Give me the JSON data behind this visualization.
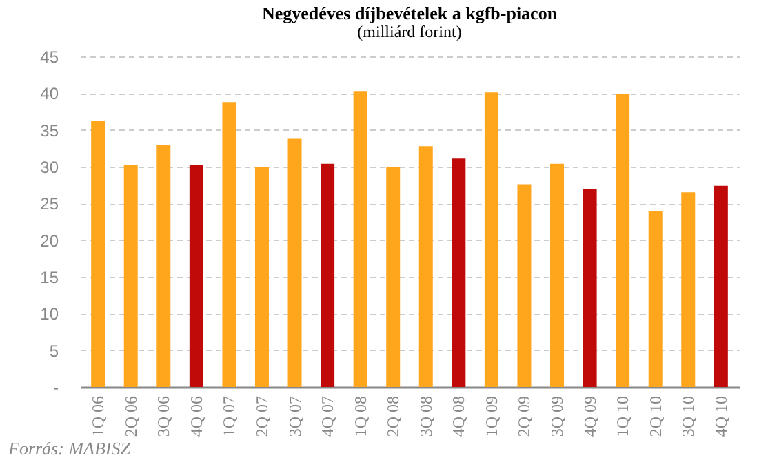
{
  "chart_data": {
    "type": "bar",
    "title": "Negyedéves díjbevételek a kgfb-piacon",
    "subtitle": "(milliárd forint)",
    "categories": [
      "1Q 06",
      "2Q 06",
      "3Q 06",
      "4Q 06",
      "1Q 07",
      "2Q 07",
      "3Q 07",
      "4Q 07",
      "1Q 08",
      "2Q 08",
      "3Q 08",
      "4Q 08",
      "1Q 09",
      "2Q 09",
      "3Q 09",
      "4Q 09",
      "1Q 10",
      "2Q 10",
      "3Q 10",
      "4Q 10"
    ],
    "values": [
      36.2,
      30.2,
      33.0,
      30.2,
      38.8,
      30.0,
      33.8,
      30.4,
      40.3,
      30.0,
      32.8,
      31.1,
      40.1,
      27.6,
      30.4,
      27.0,
      39.9,
      24.0,
      26.5,
      27.4
    ],
    "colors": [
      "#ffa61d",
      "#ffa61d",
      "#ffa61d",
      "#c00a0a",
      "#ffa61d",
      "#ffa61d",
      "#ffa61d",
      "#c00a0a",
      "#ffa61d",
      "#ffa61d",
      "#ffa61d",
      "#c00a0a",
      "#ffa61d",
      "#ffa61d",
      "#ffa61d",
      "#c00a0a",
      "#ffa61d",
      "#ffa61d",
      "#ffa61d",
      "#c00a0a"
    ],
    "ylim": [
      0,
      45
    ],
    "yticks": [
      {
        "value": 0,
        "label": "-"
      },
      5,
      10,
      15,
      20,
      25,
      30,
      35,
      40,
      45
    ],
    "grid": "y",
    "annotations": [
      "Forrás: MABISZ"
    ]
  }
}
